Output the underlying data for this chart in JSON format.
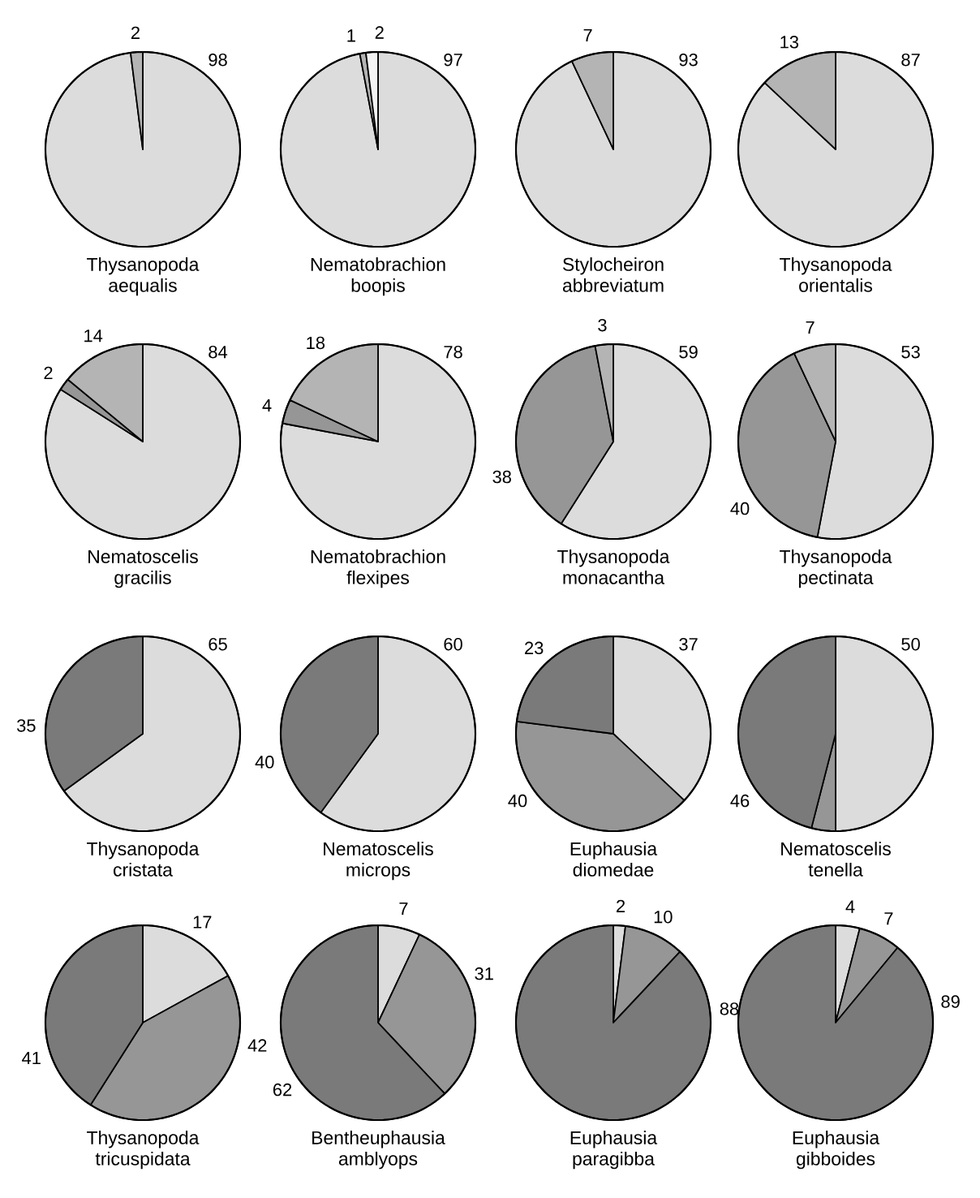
{
  "chart_data": [
    {
      "type": "pie",
      "title": "Thysanopoda aequalis",
      "categories": [
        null,
        null
      ],
      "values": [
        98,
        2
      ],
      "colors": [
        "#dcdcdc",
        "#b4b4b4"
      ],
      "data_labels": true
    },
    {
      "type": "pie",
      "title": "Nematobrachion boopis",
      "categories": [
        null,
        null,
        null
      ],
      "values": [
        97,
        1,
        2
      ],
      "colors": [
        "#dcdcdc",
        "#b4b4b4",
        "#f4f4f4"
      ],
      "data_labels": true
    },
    {
      "type": "pie",
      "title": "Stylocheiron abbreviatum",
      "categories": [
        null,
        null
      ],
      "values": [
        93,
        7
      ],
      "colors": [
        "#dcdcdc",
        "#b4b4b4"
      ],
      "data_labels": true
    },
    {
      "type": "pie",
      "title": "Thysanopoda orientalis",
      "categories": [
        null,
        null
      ],
      "values": [
        87,
        13
      ],
      "colors": [
        "#dcdcdc",
        "#b4b4b4"
      ],
      "data_labels": true
    },
    {
      "type": "pie",
      "title": "Nematoscelis gracilis",
      "categories": [
        null,
        null,
        null
      ],
      "values": [
        84,
        2,
        14
      ],
      "colors": [
        "#dcdcdc",
        "#969696",
        "#b4b4b4"
      ],
      "data_labels": true
    },
    {
      "type": "pie",
      "title": "Nematobrachion flexipes",
      "categories": [
        null,
        null,
        null
      ],
      "values": [
        78,
        4,
        18
      ],
      "colors": [
        "#dcdcdc",
        "#969696",
        "#b4b4b4"
      ],
      "data_labels": true
    },
    {
      "type": "pie",
      "title": "Thysanopoda monacantha",
      "categories": [
        null,
        null,
        null
      ],
      "values": [
        59,
        38,
        3
      ],
      "colors": [
        "#dcdcdc",
        "#969696",
        "#b4b4b4"
      ],
      "data_labels": true
    },
    {
      "type": "pie",
      "title": "Thysanopoda pectinata",
      "categories": [
        null,
        null,
        null
      ],
      "values": [
        53,
        40,
        7
      ],
      "colors": [
        "#dcdcdc",
        "#969696",
        "#b4b4b4"
      ],
      "data_labels": true
    },
    {
      "type": "pie",
      "title": "Thysanopoda cristata",
      "categories": [
        null,
        null
      ],
      "values": [
        65,
        35
      ],
      "colors": [
        "#dcdcdc",
        "#7a7a7a"
      ],
      "data_labels": true
    },
    {
      "type": "pie",
      "title": "Nematoscelis microps",
      "categories": [
        null,
        null
      ],
      "values": [
        60,
        40
      ],
      "colors": [
        "#dcdcdc",
        "#7a7a7a"
      ],
      "data_labels": true
    },
    {
      "type": "pie",
      "title": "Euphausia diomedae",
      "categories": [
        null,
        null,
        null
      ],
      "values": [
        37,
        40,
        23
      ],
      "colors": [
        "#dcdcdc",
        "#969696",
        "#7a7a7a"
      ],
      "data_labels": true
    },
    {
      "type": "pie",
      "title": "Nematoscelis tenella",
      "categories": [
        null,
        null,
        null
      ],
      "values": [
        50,
        4,
        46
      ],
      "colors": [
        "#dcdcdc",
        "#969696",
        "#7a7a7a"
      ],
      "value_labels": [
        "50",
        null,
        "46"
      ]
    },
    {
      "type": "pie",
      "title": "Thysanopoda tricuspidata",
      "categories": [
        null,
        null,
        null
      ],
      "values": [
        17,
        42,
        41
      ],
      "colors": [
        "#dcdcdc",
        "#969696",
        "#7a7a7a"
      ],
      "data_labels": true
    },
    {
      "type": "pie",
      "title": "Bentheuphausia amblyops",
      "categories": [
        null,
        null,
        null
      ],
      "values": [
        7,
        31,
        62
      ],
      "colors": [
        "#dcdcdc",
        "#969696",
        "#7a7a7a"
      ],
      "data_labels": true
    },
    {
      "type": "pie",
      "title": "Euphausia paragibba",
      "categories": [
        null,
        null,
        null
      ],
      "values": [
        2,
        10,
        88
      ],
      "colors": [
        "#dcdcdc",
        "#969696",
        "#7a7a7a"
      ],
      "data_labels": true
    },
    {
      "type": "pie",
      "title": "Euphausia gibboides",
      "categories": [
        null,
        null,
        null
      ],
      "values": [
        4,
        7,
        89
      ],
      "colors": [
        "#dcdcdc",
        "#969696",
        "#7a7a7a"
      ],
      "data_labels": true
    }
  ]
}
